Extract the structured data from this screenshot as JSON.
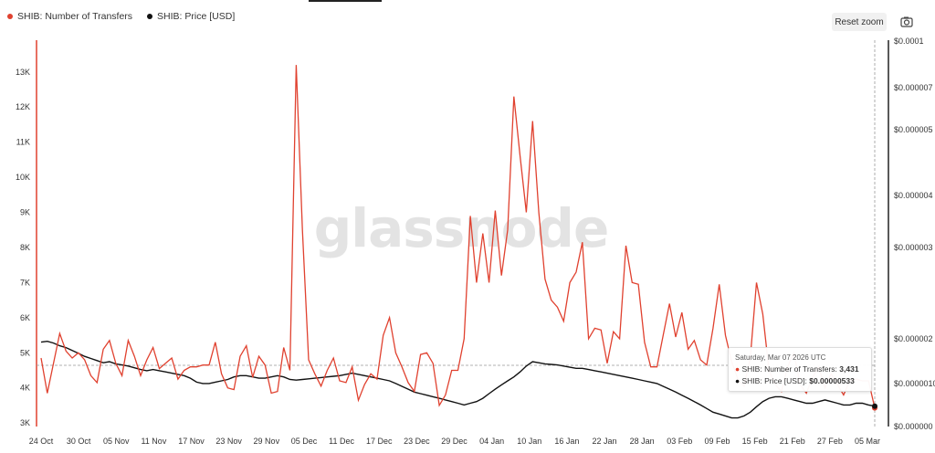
{
  "toolbar": {
    "reset_zoom_label": "Reset zoom",
    "camera_icon": "camera-icon"
  },
  "watermark": "glassnode",
  "tooltip": {
    "date": "Saturday, Mar 07 2026 UTC",
    "transfers_label": "SHIB: Number of Transfers:",
    "transfers_value": "3,431",
    "price_label": "SHIB: Price [USD]:",
    "price_value": "$0.00000533"
  },
  "chart_data": {
    "type": "line",
    "title": "",
    "xlabel": "",
    "x_tick_labels": [
      "24 Oct",
      "30 Oct",
      "05 Nov",
      "11 Nov",
      "17 Nov",
      "23 Nov",
      "29 Nov",
      "05 Dec",
      "11 Dec",
      "17 Dec",
      "23 Dec",
      "29 Dec",
      "04 Jan",
      "10 Jan",
      "16 Jan",
      "22 Jan",
      "28 Jan",
      "03 Feb",
      "09 Feb",
      "15 Feb",
      "21 Feb",
      "27 Feb",
      "05 Mar"
    ],
    "x_start": "2025-10-24",
    "x_end": "2026-03-07",
    "left_axis": {
      "label": "",
      "ticks": [
        "3K",
        "4K",
        "5K",
        "6K",
        "7K",
        "8K",
        "9K",
        "10K",
        "11K",
        "12K",
        "13K"
      ],
      "range": [
        2900,
        13800
      ]
    },
    "right_axis": {
      "label": "",
      "scale": "log",
      "ticks": [
        "$0.000000",
        "$0.0000010",
        "$0.000002",
        "$0.000003",
        "$0.000004",
        "$0.000005",
        "$0.000007",
        "$0.0001"
      ]
    },
    "legend_position": "top-left",
    "grid": false,
    "colors": {
      "transfers": "#e0412f",
      "price": "#111111"
    },
    "series": [
      {
        "name": "SHIB: Number of Transfers",
        "axis": "left",
        "values": [
          4850,
          3850,
          4700,
          5550,
          5050,
          4850,
          5000,
          4800,
          4350,
          4150,
          5100,
          5350,
          4700,
          4350,
          5350,
          4900,
          4350,
          4800,
          5150,
          4550,
          4700,
          4850,
          4250,
          4500,
          4600,
          4600,
          4650,
          4650,
          5300,
          4400,
          4000,
          3950,
          4900,
          5200,
          4300,
          4900,
          4650,
          3850,
          3900,
          5150,
          4500,
          13200,
          8500,
          4800,
          4400,
          4050,
          4500,
          4850,
          4200,
          4150,
          4600,
          3650,
          4100,
          4400,
          4250,
          5500,
          6000,
          5000,
          4600,
          4150,
          3900,
          4950,
          5000,
          4700,
          3500,
          3800,
          4500,
          4500,
          5400,
          8900,
          7000,
          8400,
          7000,
          9050,
          7200,
          8500,
          12300,
          10600,
          9000,
          11600,
          9000,
          7100,
          6500,
          6300,
          5900,
          7000,
          7300,
          8150,
          5400,
          5700,
          5650,
          4700,
          5600,
          5400,
          8050,
          7000,
          6950,
          5300,
          4600,
          4600,
          5500,
          6400,
          5450,
          6150,
          5100,
          5350,
          4800,
          4650,
          5700,
          6950,
          5500,
          4750,
          4250,
          4050,
          4850,
          7000,
          6100,
          4500,
          4100,
          3900,
          4600,
          5000,
          4100,
          3850,
          4300,
          4600,
          4000,
          4400,
          4100,
          3800,
          4200,
          4250,
          4200,
          4200,
          3431
        ]
      },
      {
        "name": "SHIB: Price [USD]",
        "axis": "right",
        "values": [
          1.06e-05,
          1.07e-05,
          1.05e-05,
          1.02e-05,
          1e-05,
          9.7e-06,
          9.4e-06,
          9.1e-06,
          8.9e-06,
          8.7e-06,
          8.5e-06,
          8.6e-06,
          8.4e-06,
          8.3e-06,
          8.2e-06,
          8.05e-06,
          7.9e-06,
          7.8e-06,
          7.9e-06,
          7.8e-06,
          7.7e-06,
          7.6e-06,
          7.5e-06,
          7.4e-06,
          7.2e-06,
          6.9e-06,
          6.8e-06,
          6.8e-06,
          6.9e-06,
          7e-06,
          7.1e-06,
          7.3e-06,
          7.4e-06,
          7.4e-06,
          7.3e-06,
          7.2e-06,
          7.2e-06,
          7.3e-06,
          7.4e-06,
          7.3e-06,
          7.1e-06,
          7.05e-06,
          7.1e-06,
          7.15e-06,
          7.2e-06,
          7.25e-06,
          7.3e-06,
          7.35e-06,
          7.4e-06,
          7.5e-06,
          7.6e-06,
          7.5e-06,
          7.4e-06,
          7.3e-06,
          7.2e-06,
          7.1e-06,
          7e-06,
          6.8e-06,
          6.6e-06,
          6.4e-06,
          6.2e-06,
          6.1e-06,
          6e-06,
          5.9e-06,
          5.8e-06,
          5.7e-06,
          5.6e-06,
          5.5e-06,
          5.4e-06,
          5.5e-06,
          5.6e-06,
          5.8e-06,
          6.1e-06,
          6.4e-06,
          6.7e-06,
          7e-06,
          7.3e-06,
          7.7e-06,
          8.2e-06,
          8.6e-06,
          8.5e-06,
          8.4e-06,
          8.35e-06,
          8.3e-06,
          8.2e-06,
          8.1e-06,
          8e-06,
          8e-06,
          7.9e-06,
          7.8e-06,
          7.7e-06,
          7.6e-06,
          7.5e-06,
          7.4e-06,
          7.3e-06,
          7.2e-06,
          7.1e-06,
          7e-06,
          6.9e-06,
          6.8e-06,
          6.6e-06,
          6.4e-06,
          6.2e-06,
          6e-06,
          5.8e-06,
          5.6e-06,
          5.4e-06,
          5.2e-06,
          5e-06,
          4.9e-06,
          4.8e-06,
          4.7e-06,
          4.7e-06,
          4.8e-06,
          5e-06,
          5.3e-06,
          5.6e-06,
          5.8e-06,
          5.9e-06,
          5.9e-06,
          5.8e-06,
          5.7e-06,
          5.6e-06,
          5.5e-06,
          5.5e-06,
          5.6e-06,
          5.7e-06,
          5.6e-06,
          5.5e-06,
          5.4e-06,
          5.4e-06,
          5.5e-06,
          5.5e-06,
          5.4e-06,
          5.33e-06
        ]
      }
    ]
  }
}
